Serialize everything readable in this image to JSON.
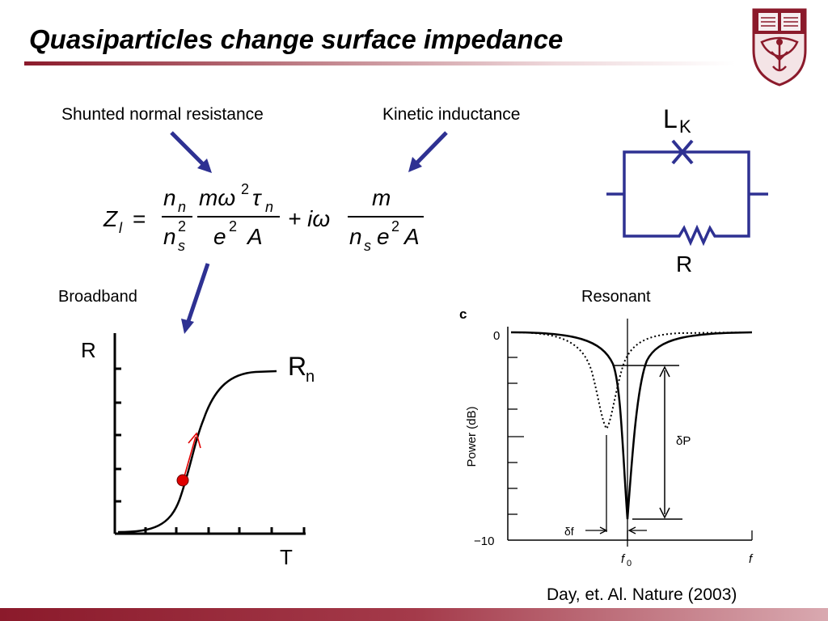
{
  "slide": {
    "title": "Quasiparticles change surface impedance"
  },
  "equation_labels": {
    "left": "Shunted normal resistance",
    "right": "Kinetic inductance"
  },
  "equation": {
    "lhs": "Z",
    "lhs_sub": "l",
    "eq": "=",
    "frac1_num": "n",
    "frac1_num_sub": "n",
    "frac1_den": "n",
    "frac1_den_sup": "2",
    "frac1_den_sub": "s",
    "frac2_num_a": "mω",
    "frac2_num_sup": "2",
    "frac2_num_b": "τ",
    "frac2_num_sub": "n",
    "frac2_den_a": "e",
    "frac2_den_sup": "2",
    "frac2_den_b": "A",
    "plus": "+ iω",
    "frac3_num": "m",
    "frac3_den_a": "n",
    "frac3_den_sub": "s",
    "frac3_den_b": "e",
    "frac3_den_sup": "2",
    "frac3_den_c": "A"
  },
  "circuit": {
    "inductor_label": "L",
    "inductor_sub": "K",
    "resistor_label": "R"
  },
  "broadband": {
    "label": "Broadband",
    "y_axis": "R",
    "x_axis": "T",
    "curve_label": "R",
    "curve_label_sub": "n"
  },
  "resonant": {
    "label": "Resonant",
    "panel_letter": "c",
    "y_top": "0",
    "y_bottom": "−10",
    "y_axis": "Power (dB)",
    "x_center": "f",
    "x_center_sub": "0",
    "x_right": "f",
    "delta_p": "δP",
    "delta_f": "δf"
  },
  "citation": "Day, et. Al. Nature (2003)",
  "colors": {
    "accent": "#8b1a2b",
    "arrow": "#2e3192",
    "marker": "#e00000"
  },
  "icons": {
    "logo": "university-crest-icon"
  }
}
